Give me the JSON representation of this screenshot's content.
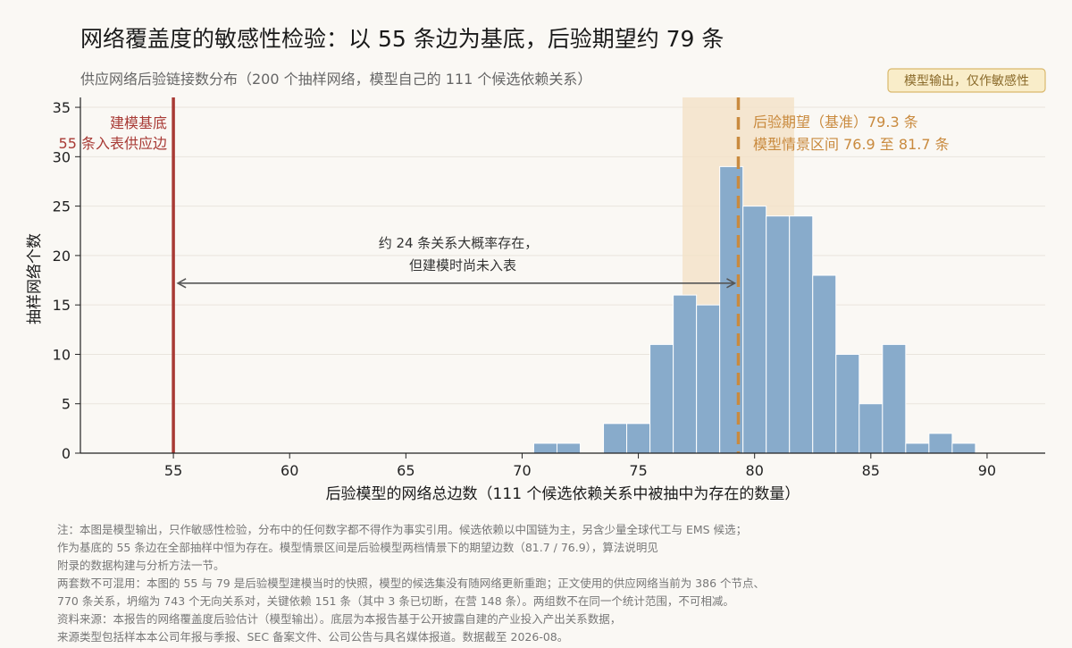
{
  "chart_data": {
    "type": "bar",
    "title": "网络覆盖度的敏感性检验：以 55 条边为基底，后验期望约 79 条",
    "subtitle": "供应网络后验链接数分布（200 个抽样网络，模型自己的 111 个候选依赖关系）",
    "badge": "模型输出，仅作敏感性",
    "xlabel": "后验模型的网络总边数（111 个候选依赖关系中被抽中为存在的数量）",
    "ylabel": "抽样网络个数",
    "xlim": [
      51,
      92.5
    ],
    "ylim": [
      0,
      36
    ],
    "x_ticks": [
      "55",
      "60",
      "65",
      "70",
      "75",
      "80",
      "85",
      "90"
    ],
    "y_ticks": [
      "0",
      "5",
      "10",
      "15",
      "20",
      "25",
      "30",
      "35"
    ],
    "grid": "horizontal",
    "colors": {
      "bar": "#88abcb",
      "baseline": "#a83a35",
      "posterior": "#c98a3e",
      "band": "#f3e0c4",
      "arrow": "#555555",
      "axis": "#222222"
    },
    "bars": [
      {
        "x": 71,
        "count": 1
      },
      {
        "x": 72,
        "count": 1
      },
      {
        "x": 74,
        "count": 3
      },
      {
        "x": 75,
        "count": 3
      },
      {
        "x": 76,
        "count": 11
      },
      {
        "x": 77,
        "count": 16
      },
      {
        "x": 78,
        "count": 15
      },
      {
        "x": 79,
        "count": 29
      },
      {
        "x": 80,
        "count": 25
      },
      {
        "x": 81,
        "count": 24
      },
      {
        "x": 82,
        "count": 24
      },
      {
        "x": 83,
        "count": 18
      },
      {
        "x": 84,
        "count": 10
      },
      {
        "x": 85,
        "count": 5
      },
      {
        "x": 86,
        "count": 11
      },
      {
        "x": 87,
        "count": 1
      },
      {
        "x": 88,
        "count": 2
      },
      {
        "x": 89,
        "count": 1
      }
    ],
    "baseline": {
      "x": 55,
      "label_line1": "建模基底",
      "label_line2": "55 条入表供应边"
    },
    "posterior_mean": {
      "x": 79.3,
      "label_line1": "后验期望（基准）79.3 条",
      "label_line2": "模型情景区间 76.9 至 81.7 条"
    },
    "scenario_band": [
      76.9,
      81.7
    ],
    "arrow_annotation": {
      "from": 55,
      "to": 79.3,
      "y": 17.2,
      "label_line1": "约 24 条关系大概率存在，",
      "label_line2": "但建模时尚未入表"
    }
  },
  "notes": [
    "注：本图是模型输出，只作敏感性检验，分布中的任何数字都不得作为事实引用。候选依赖以中国链为主，另含少量全球代工与 EMS 候选；",
    "作为基底的 55 条边在全部抽样中恒为存在。模型情景区间是后验模型两档情景下的期望边数（81.7 / 76.9），算法说明见",
    "附录的数据构建与分析方法一节。",
    "两套数不可混用：本图的 55 与 79 是后验模型建模当时的快照，模型的候选集没有随网络更新重跑；正文使用的供应网络当前为 386 个节点、",
    "770 条关系，坍缩为 743 个无向关系对，关键依赖 151 条（其中 3 条已切断，在营 148 条）。两组数不在同一个统计范围，不可相减。",
    "资料来源：本报告的网络覆盖度后验估计（模型输出）。底层为本报告基于公开披露自建的产业投入产出关系数据，",
    "来源类型包括样本本公司年报与季报、SEC 备案文件、公司公告与具名媒体报道。数据截至 2026-08。"
  ]
}
